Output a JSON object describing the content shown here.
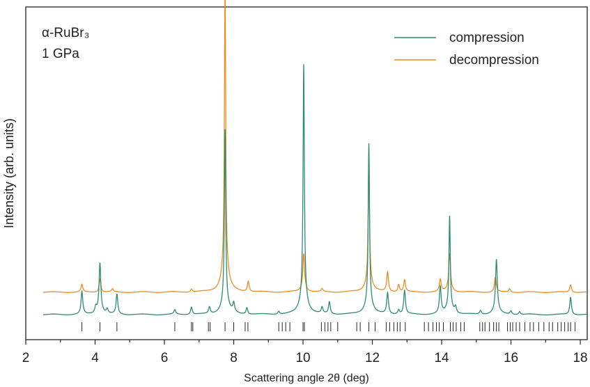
{
  "chart_data": {
    "type": "line",
    "annotation": {
      "material": "α-RuBr₃",
      "pressure": "1 GPa"
    },
    "xlabel": "Scattering angle 2θ (deg)",
    "ylabel": "Intensity (arb. units)",
    "xlim": [
      2,
      18.2
    ],
    "x_ticks": [
      2,
      4,
      6,
      8,
      10,
      12,
      14,
      16,
      18
    ],
    "y_ticks_shown": false,
    "legend_position": "top-right",
    "colors": {
      "compression": "#2e8a73",
      "decompression": "#f08a1e"
    },
    "series": [
      {
        "name": "compression",
        "baseline": 0.0,
        "x_range": [
          2.5,
          18.2
        ],
        "peaks": [
          {
            "x": 3.62,
            "h": 0.075
          },
          {
            "x": 4.02,
            "h": 0.02
          },
          {
            "x": 4.14,
            "h": 0.16
          },
          {
            "x": 4.35,
            "h": 0.015
          },
          {
            "x": 4.63,
            "h": 0.066
          },
          {
            "x": 6.3,
            "h": 0.015
          },
          {
            "x": 6.78,
            "h": 0.025
          },
          {
            "x": 7.3,
            "h": 0.022
          },
          {
            "x": 7.75,
            "h": 0.575
          },
          {
            "x": 8.0,
            "h": 0.03
          },
          {
            "x": 8.38,
            "h": 0.022
          },
          {
            "x": 9.3,
            "h": 0.01
          },
          {
            "x": 10.02,
            "h": 0.775
          },
          {
            "x": 10.55,
            "h": 0.02
          },
          {
            "x": 10.76,
            "h": 0.04
          },
          {
            "x": 11.9,
            "h": 0.53
          },
          {
            "x": 12.44,
            "h": 0.07
          },
          {
            "x": 12.76,
            "h": 0.015
          },
          {
            "x": 12.93,
            "h": 0.08
          },
          {
            "x": 13.96,
            "h": 0.088
          },
          {
            "x": 14.23,
            "h": 0.305
          },
          {
            "x": 14.4,
            "h": 0.02
          },
          {
            "x": 15.12,
            "h": 0.012
          },
          {
            "x": 15.58,
            "h": 0.17
          },
          {
            "x": 16.0,
            "h": 0.012
          },
          {
            "x": 16.25,
            "h": 0.01
          },
          {
            "x": 17.72,
            "h": 0.058
          }
        ]
      },
      {
        "name": "decompression",
        "baseline": 0.075,
        "x_range": [
          2.5,
          18.2
        ],
        "peaks": [
          {
            "x": 3.62,
            "h": 0.025
          },
          {
            "x": 4.14,
            "h": 0.045
          },
          {
            "x": 4.5,
            "h": 0.01
          },
          {
            "x": 6.78,
            "h": 0.01
          },
          {
            "x": 7.75,
            "h": 0.93
          },
          {
            "x": 8.42,
            "h": 0.035
          },
          {
            "x": 10.02,
            "h": 0.12
          },
          {
            "x": 10.55,
            "h": 0.01
          },
          {
            "x": 11.9,
            "h": 0.44
          },
          {
            "x": 12.44,
            "h": 0.065
          },
          {
            "x": 12.76,
            "h": 0.025
          },
          {
            "x": 12.93,
            "h": 0.04
          },
          {
            "x": 13.96,
            "h": 0.04
          },
          {
            "x": 14.23,
            "h": 0.12
          },
          {
            "x": 15.55,
            "h": 0.05
          },
          {
            "x": 15.96,
            "h": 0.012
          },
          {
            "x": 17.72,
            "h": 0.025
          }
        ]
      }
    ],
    "reflection_markers": [
      3.62,
      4.14,
      4.63,
      6.3,
      6.78,
      6.82,
      7.27,
      7.32,
      7.75,
      8.0,
      8.33,
      8.41,
      9.3,
      9.4,
      9.5,
      9.62,
      10.0,
      10.04,
      10.53,
      10.63,
      10.72,
      10.8,
      11.0,
      11.55,
      11.65,
      11.9,
      12.08,
      12.4,
      12.5,
      12.62,
      12.72,
      12.8,
      12.95,
      13.5,
      13.62,
      13.75,
      13.85,
      13.93,
      14.05,
      14.25,
      14.33,
      14.42,
      14.55,
      14.65,
      15.1,
      15.18,
      15.25,
      15.38,
      15.5,
      15.58,
      15.65,
      15.9,
      15.98,
      16.05,
      16.15,
      16.25,
      16.4,
      16.55,
      16.65,
      16.8,
      16.95,
      17.1,
      17.2,
      17.35,
      17.45,
      17.55,
      17.65,
      17.72,
      17.85
    ]
  }
}
